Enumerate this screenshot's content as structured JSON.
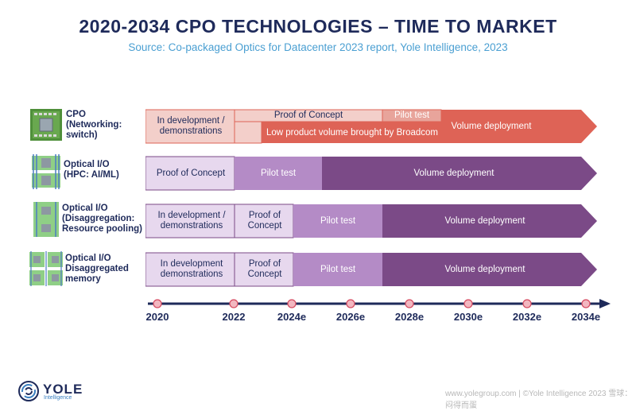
{
  "title": "2020-2034 CPO TECHNOLOGIES – TIME TO MARKET",
  "subtitle": "Source: Co-packaged Optics for Datacenter 2023 report, Yole Intelligence, 2023",
  "rows": [
    {
      "label": [
        "CPO",
        "(Networking:",
        "switch)"
      ],
      "seg_in_dev": "In development / demonstrations",
      "seg_poc": "Proof of Concept",
      "seg_pilot": "Pilot test",
      "seg_low_volume": "Low product volume brought by Broadcom",
      "seg_volume": "Volume deployment"
    },
    {
      "label": [
        "Optical I/O",
        "(HPC: AI/ML)"
      ],
      "seg_poc": "Proof of Concept",
      "seg_pilot": "Pilot test",
      "seg_volume": "Volume deployment"
    },
    {
      "label": [
        "Optical I/O",
        "(Disaggregation:",
        "Resource pooling)"
      ],
      "seg_in_dev": "In development / demonstrations",
      "seg_poc": "Proof of Concept",
      "seg_pilot": "Pilot test",
      "seg_volume": "Volume deployment"
    },
    {
      "label": [
        "Optical I/O",
        "Disaggregated",
        "memory"
      ],
      "seg_in_dev": "In development demonstrations",
      "seg_poc": "Proof of Concept",
      "seg_pilot": "Pilot test",
      "seg_volume": "Volume deployment"
    }
  ],
  "timeline": {
    "ticks": [
      "2020",
      "2022",
      "2024e",
      "2026e",
      "2028e",
      "2030e",
      "2032e",
      "2034e"
    ]
  },
  "colors": {
    "navy": "#1e2a5a",
    "cpo_light": "#f3cfca",
    "cpo_mid": "#e8a49b",
    "cpo_dark": "#de6356",
    "purple_light": "#e7d8ee",
    "purple_mid": "#b48bc6",
    "purple_dark": "#7b4a87"
  },
  "logo": {
    "name": "YOLE",
    "sub": "Intelligence"
  },
  "watermark": "www.yolegroup.com | ©Yole Intelligence 2023 雪球：闷得而蛋"
}
